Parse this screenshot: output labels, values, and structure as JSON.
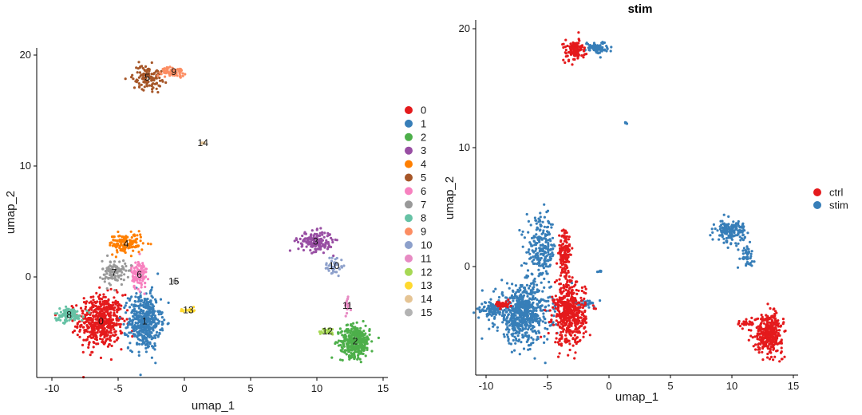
{
  "chart_data": [
    {
      "type": "scatter",
      "title": "",
      "xlabel": "umap_1",
      "ylabel": "umap_2",
      "xlim": [
        -11,
        15.5
      ],
      "ylim": [
        -9,
        20.8
      ],
      "xticks": [
        -10,
        -5,
        0,
        5,
        10,
        15
      ],
      "yticks": [
        0,
        10,
        20
      ],
      "xtick_labels": [
        "-10",
        "-5",
        "0",
        "5",
        "10",
        "15"
      ],
      "ytick_labels": [
        "0",
        "10",
        "20"
      ],
      "grid": false,
      "legend_position": "right",
      "legend": [
        "0",
        "1",
        "2",
        "3",
        "4",
        "5",
        "6",
        "7",
        "8",
        "9",
        "10",
        "11",
        "12",
        "13",
        "14",
        "15"
      ],
      "colors": [
        "#E41A1C",
        "#377EB8",
        "#4DAF4A",
        "#984EA3",
        "#FF7F00",
        "#A65628",
        "#F781BF",
        "#999999",
        "#66C2A5",
        "#FC8D62",
        "#8DA0CB",
        "#E78AC3",
        "#A6D854",
        "#FFD92F",
        "#E5C494",
        "#B3B3B3"
      ],
      "clusters": [
        {
          "name": "0",
          "x": -6.3,
          "y": -4.0,
          "rx": 1.7,
          "ry": 2.4,
          "n": 520
        },
        {
          "name": "1",
          "x": -3.0,
          "y": -4.0,
          "rx": 1.2,
          "ry": 2.5,
          "n": 460
        },
        {
          "name": "2",
          "x": 12.9,
          "y": -5.8,
          "rx": 1.1,
          "ry": 1.4,
          "n": 380
        },
        {
          "name": "3",
          "x": 9.9,
          "y": 3.2,
          "rx": 1.3,
          "ry": 0.9,
          "n": 170
        },
        {
          "name": "4",
          "x": -4.4,
          "y": 3.0,
          "rx": 1.3,
          "ry": 0.9,
          "n": 130
        },
        {
          "name": "5",
          "x": -2.8,
          "y": 18.0,
          "rx": 1.1,
          "ry": 1.1,
          "n": 120
        },
        {
          "name": "6",
          "x": -3.4,
          "y": 0.2,
          "rx": 0.6,
          "ry": 1.3,
          "n": 110
        },
        {
          "name": "7",
          "x": -5.3,
          "y": 0.4,
          "rx": 0.9,
          "ry": 1.1,
          "n": 110
        },
        {
          "name": "8",
          "x": -8.7,
          "y": -3.4,
          "rx": 1.1,
          "ry": 0.6,
          "n": 120
        },
        {
          "name": "9",
          "x": -0.8,
          "y": 18.5,
          "rx": 0.9,
          "ry": 0.4,
          "n": 70
        },
        {
          "name": "10",
          "x": 11.3,
          "y": 1.0,
          "rx": 0.7,
          "ry": 0.9,
          "n": 40
        },
        {
          "name": "11",
          "x": 12.3,
          "y": -2.6,
          "rx": 0.2,
          "ry": 0.9,
          "n": 20
        },
        {
          "name": "12",
          "x": 10.8,
          "y": -4.9,
          "rx": 0.7,
          "ry": 0.3,
          "n": 25
        },
        {
          "name": "13",
          "x": 0.3,
          "y": -3.0,
          "rx": 0.6,
          "ry": 0.2,
          "n": 20
        },
        {
          "name": "14",
          "x": 1.4,
          "y": 12.1,
          "rx": 0.1,
          "ry": 0.1,
          "n": 5
        },
        {
          "name": "15",
          "x": -0.8,
          "y": -0.4,
          "rx": 0.2,
          "ry": 0.1,
          "n": 5
        }
      ]
    },
    {
      "type": "scatter",
      "title": "stim",
      "xlabel": "umap_1",
      "ylabel": "umap_2",
      "xlim": [
        -11,
        15.5
      ],
      "ylim": [
        -9,
        20.8
      ],
      "xticks": [
        -10,
        -5,
        0,
        5,
        10,
        15
      ],
      "yticks": [
        0,
        10,
        20
      ],
      "xtick_labels": [
        "-10",
        "-5",
        "0",
        "5",
        "10",
        "15"
      ],
      "ytick_labels": [
        "0",
        "10",
        "20"
      ],
      "grid": false,
      "legend_position": "right",
      "legend": [
        "ctrl",
        "stim"
      ],
      "colors": [
        "#E41A1C",
        "#377EB8"
      ],
      "groups": [
        {
          "name": "stim",
          "x": -7.0,
          "y": -4.0,
          "rx": 2.2,
          "ry": 2.4,
          "n": 620
        },
        {
          "name": "stim",
          "x": -5.5,
          "y": 1.5,
          "rx": 1.2,
          "ry": 2.5,
          "n": 220
        },
        {
          "name": "stim",
          "x": -9.5,
          "y": -3.6,
          "rx": 0.9,
          "ry": 0.6,
          "n": 90
        },
        {
          "name": "stim",
          "x": 9.9,
          "y": 3.0,
          "rx": 1.2,
          "ry": 0.9,
          "n": 160
        },
        {
          "name": "stim",
          "x": 11.2,
          "y": 0.9,
          "rx": 0.6,
          "ry": 0.8,
          "n": 40
        },
        {
          "name": "stim",
          "x": -1.0,
          "y": 18.4,
          "rx": 0.9,
          "ry": 0.5,
          "n": 80
        },
        {
          "name": "stim",
          "x": -1.8,
          "y": -3.1,
          "rx": 1.0,
          "ry": 0.3,
          "n": 30
        },
        {
          "name": "stim",
          "x": 1.4,
          "y": 12.1,
          "rx": 0.1,
          "ry": 0.1,
          "n": 5
        },
        {
          "name": "stim",
          "x": -0.8,
          "y": -0.4,
          "rx": 0.2,
          "ry": 0.1,
          "n": 5
        },
        {
          "name": "ctrl",
          "x": -3.2,
          "y": -4.0,
          "rx": 1.3,
          "ry": 2.6,
          "n": 480
        },
        {
          "name": "ctrl",
          "x": -3.6,
          "y": 1.0,
          "rx": 0.5,
          "ry": 2.2,
          "n": 150
        },
        {
          "name": "ctrl",
          "x": 13.0,
          "y": -5.6,
          "rx": 1.1,
          "ry": 1.6,
          "n": 360
        },
        {
          "name": "ctrl",
          "x": -2.8,
          "y": 18.2,
          "rx": 0.9,
          "ry": 0.9,
          "n": 110
        },
        {
          "name": "ctrl",
          "x": -8.6,
          "y": -3.2,
          "rx": 0.6,
          "ry": 0.3,
          "n": 40
        },
        {
          "name": "ctrl",
          "x": 10.9,
          "y": -4.8,
          "rx": 0.7,
          "ry": 0.3,
          "n": 25
        }
      ]
    }
  ]
}
